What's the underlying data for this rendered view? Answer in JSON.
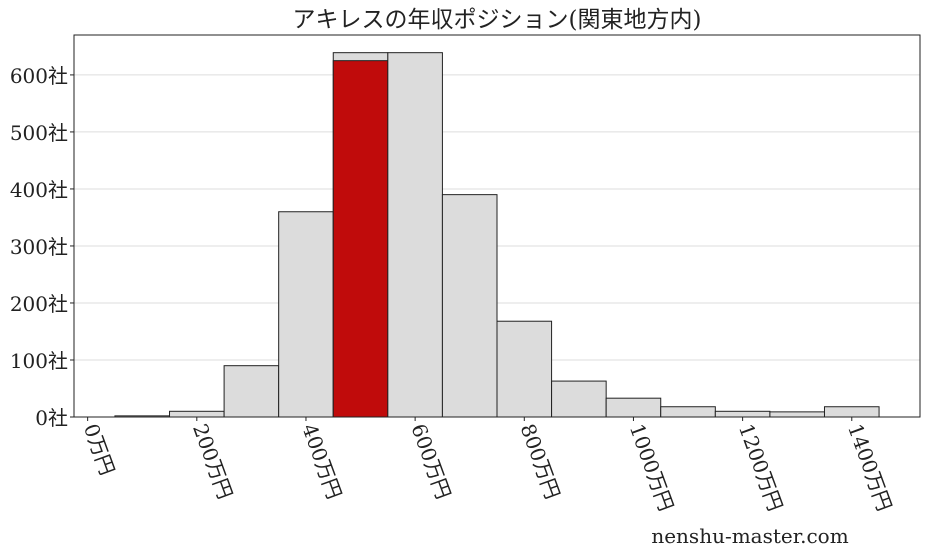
{
  "chart_data": {
    "type": "bar",
    "title": "アキレスの年収ポジション(関東地方内)",
    "xlabel": "",
    "ylabel": "",
    "x_unit": "万円",
    "y_unit": "社",
    "xlim": [
      -25,
      1525
    ],
    "ylim": [
      0,
      670
    ],
    "grid": "horizontal",
    "x_ticks": [
      "0万円",
      "200万円",
      "400万円",
      "600万円",
      "800万円",
      "1000万円",
      "1200万円",
      "1400万円"
    ],
    "x_tick_values": [
      0,
      200,
      400,
      600,
      800,
      1000,
      1200,
      1400
    ],
    "y_ticks": [
      "0社",
      "100社",
      "200社",
      "300社",
      "400社",
      "500社",
      "600社"
    ],
    "y_tick_values": [
      0,
      100,
      200,
      300,
      400,
      500,
      600
    ],
    "bin_width": 100,
    "x": [
      100,
      200,
      300,
      400,
      500,
      600,
      700,
      800,
      900,
      1000,
      1100,
      1200,
      1300,
      1400
    ],
    "values": [
      2,
      10,
      90,
      360,
      639,
      639,
      390,
      168,
      63,
      33,
      18,
      10,
      9,
      18
    ],
    "highlight": {
      "x": 500,
      "value": 625,
      "color": "#c00b0b"
    },
    "bar_color": "#dcdcdc",
    "watermark": "nenshu-master.com"
  }
}
